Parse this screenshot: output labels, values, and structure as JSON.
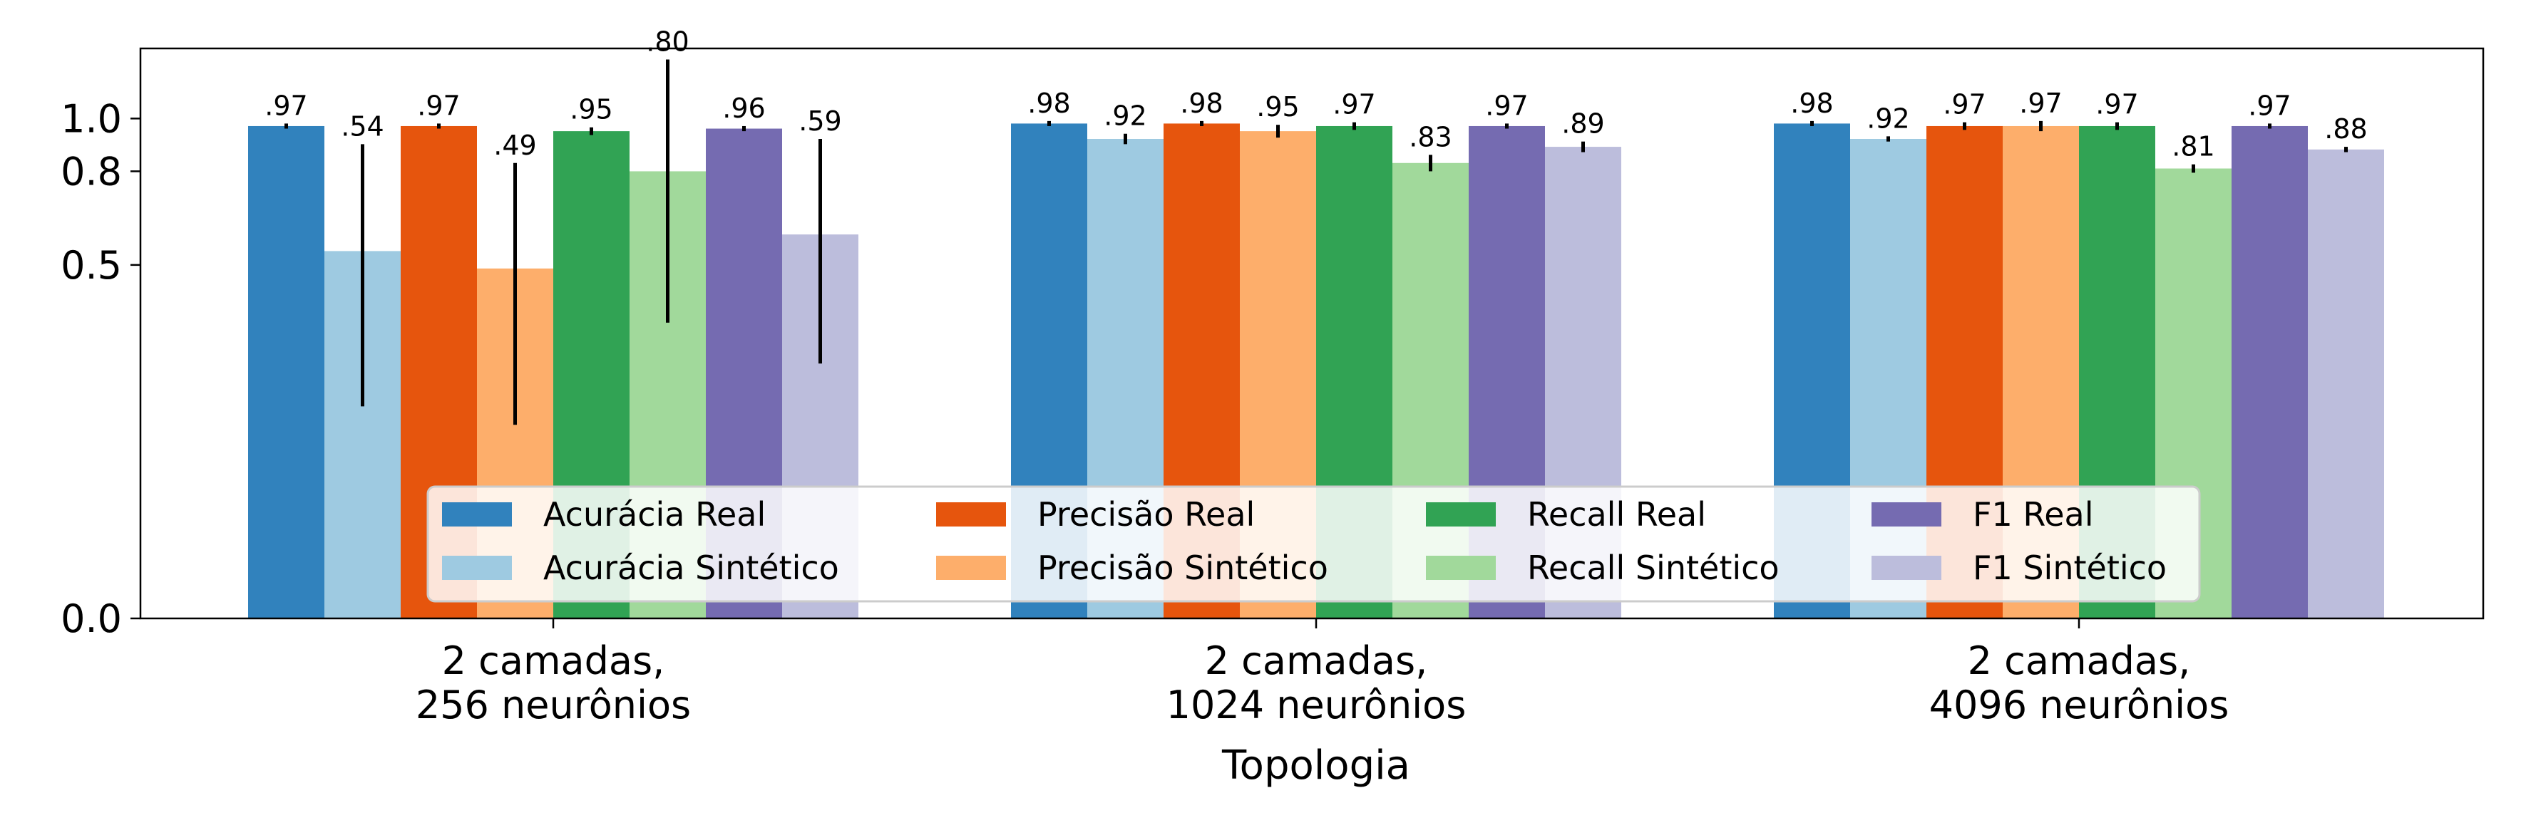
{
  "chart_data": {
    "type": "bar",
    "xlabel": "Topologia",
    "ylabel": "",
    "ylim": [
      0,
      1.3
    ],
    "yscale": "sqrt",
    "yticks": [
      0.0,
      0.5,
      0.8,
      1.0
    ],
    "ytick_labels": [
      "0.0",
      "0.5",
      "0.8",
      "1.0"
    ],
    "grid": false,
    "legend_position": "lower center",
    "categories": [
      [
        "2 camadas,",
        "256 neurônios"
      ],
      [
        "2 camadas,",
        "1024 neurônios"
      ],
      [
        "2 camadas,",
        "4096 neurônios"
      ]
    ],
    "series": [
      {
        "name": "Acurácia Real",
        "color": "#3182bd",
        "values": [
          0.97,
          0.98,
          0.98
        ],
        "errors": [
          0.01,
          0.01,
          0.01
        ],
        "labels": [
          ".97",
          ".98",
          ".98"
        ]
      },
      {
        "name": "Acurácia Sintético",
        "color": "#9ecae1",
        "values": [
          0.54,
          0.92,
          0.92
        ],
        "errors": [
          0.36,
          0.02,
          0.01
        ],
        "labels": [
          ".54",
          ".92",
          ".92"
        ]
      },
      {
        "name": "Precisão Real",
        "color": "#e6550d",
        "values": [
          0.97,
          0.98,
          0.97
        ],
        "errors": [
          0.01,
          0.01,
          0.015
        ],
        "labels": [
          ".97",
          ".98",
          ".97"
        ]
      },
      {
        "name": "Precisão Sintético",
        "color": "#fdae6b",
        "values": [
          0.49,
          0.95,
          0.97
        ],
        "errors": [
          0.34,
          0.025,
          0.02
        ],
        "labels": [
          ".49",
          ".95",
          ".97"
        ]
      },
      {
        "name": "Recall Real",
        "color": "#31a354",
        "values": [
          0.95,
          0.97,
          0.97
        ],
        "errors": [
          0.015,
          0.015,
          0.015
        ],
        "labels": [
          ".95",
          ".97",
          ".97"
        ]
      },
      {
        "name": "Recall Sintético",
        "color": "#a1d99b",
        "values": [
          0.8,
          0.83,
          0.81
        ],
        "errors": [
          0.45,
          0.03,
          0.015
        ],
        "labels": [
          ".80",
          ".83",
          ".81"
        ]
      },
      {
        "name": "F1 Real",
        "color": "#756bb1",
        "values": [
          0.96,
          0.97,
          0.97
        ],
        "errors": [
          0.01,
          0.01,
          0.01
        ],
        "labels": [
          ".96",
          ".97",
          ".97"
        ]
      },
      {
        "name": "F1 Sintético",
        "color": "#bcbddc",
        "values": [
          0.59,
          0.89,
          0.88
        ],
        "errors": [
          0.33,
          0.02,
          0.01
        ],
        "labels": [
          ".59",
          ".89",
          ".88"
        ]
      }
    ]
  }
}
